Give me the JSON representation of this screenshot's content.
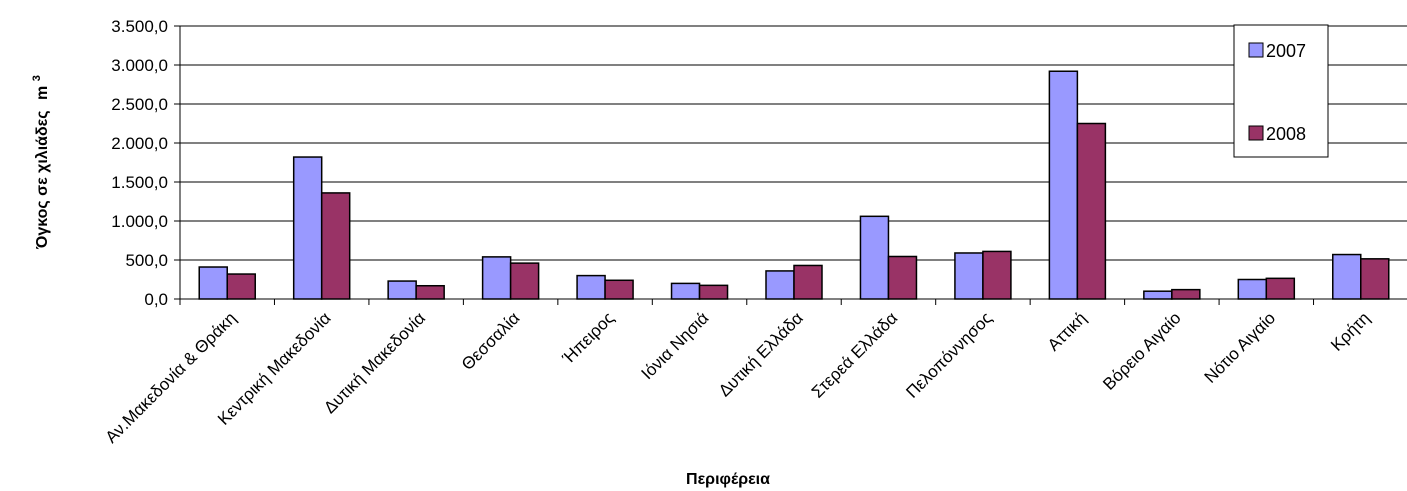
{
  "chart_data": {
    "type": "bar",
    "xlabel": "Περιφέρεια",
    "ylabel": "Όγκος σε χιλιάδες",
    "ylabel_unit": "m",
    "ylabel_unit_sup": "3",
    "ylim": [
      0,
      3500
    ],
    "yticks": [
      "0,0",
      "500,0",
      "1.000,0",
      "1.500,0",
      "2.000,0",
      "2.500,0",
      "3.000,0",
      "3.500,0"
    ],
    "grid": true,
    "legend_position": "top-right",
    "categories": [
      "Αν.Μακεδονία & Θράκη",
      "Κεντρική Μακεδονία",
      "Δυτική Μακεδονία",
      "Θεσσαλία",
      "Ήπειρος",
      "Ιόνια Νησιά",
      "Δυτική Ελλάδα",
      "Στερεά Ελλάδα",
      "Πελοπόννησος",
      "Αττική",
      "Βόρειο Αιγαίο",
      "Νότιο Αιγαίο",
      "Κρήτη"
    ],
    "series": [
      {
        "name": "2007",
        "color": "#9999ff",
        "values": [
          410,
          1820,
          230,
          540,
          300,
          200,
          360,
          1060,
          590,
          2920,
          100,
          250,
          570
        ]
      },
      {
        "name": "2008",
        "color": "#993366",
        "values": [
          320,
          1360,
          170,
          460,
          240,
          175,
          430,
          545,
          610,
          2250,
          120,
          265,
          515
        ]
      }
    ]
  }
}
